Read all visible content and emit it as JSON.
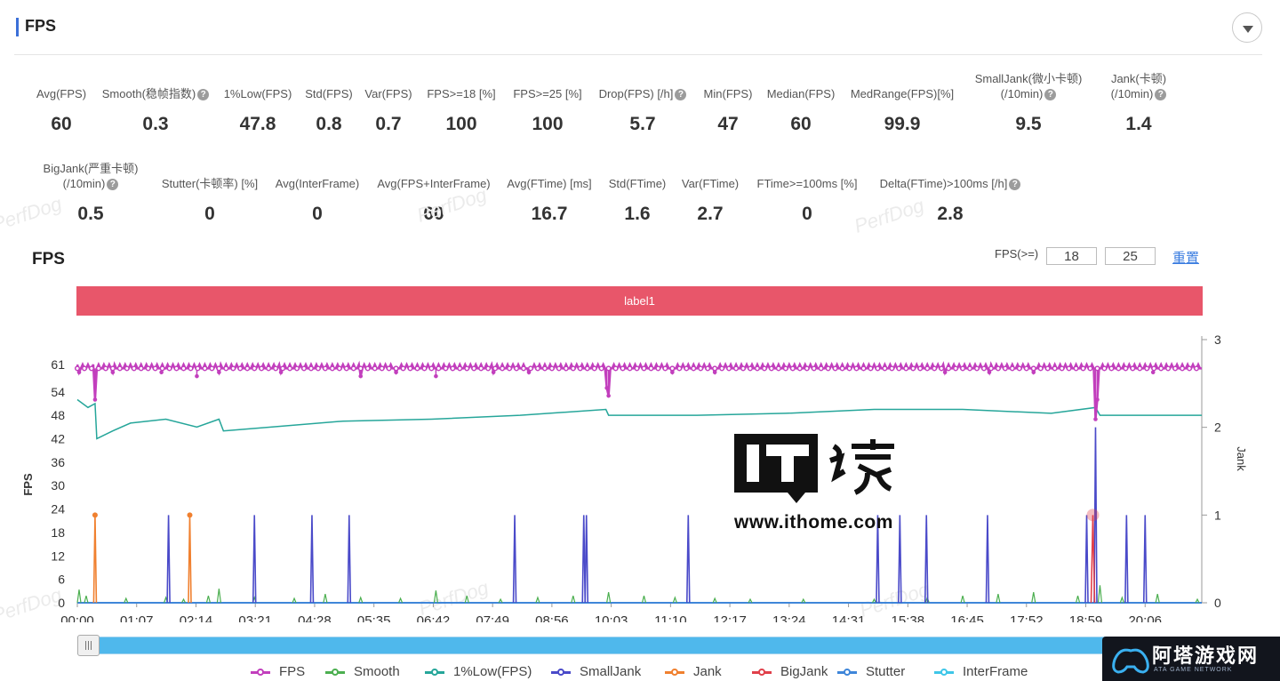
{
  "section": {
    "title": "FPS"
  },
  "metrics_row1": [
    {
      "label": "Avg(FPS)",
      "value": "60"
    },
    {
      "label": "Smooth(稳帧指数)",
      "value": "0.3",
      "help": true
    },
    {
      "label": "1%Low(FPS)",
      "value": "47.8"
    },
    {
      "label": "Std(FPS)",
      "value": "0.8"
    },
    {
      "label": "Var(FPS)",
      "value": "0.7"
    },
    {
      "label": "FPS>=18 [%]",
      "value": "100"
    },
    {
      "label": "FPS>=25 [%]",
      "value": "100"
    },
    {
      "label": "Drop(FPS) [/h]",
      "value": "5.7",
      "help": true
    },
    {
      "label": "Min(FPS)",
      "value": "47"
    },
    {
      "label": "Median(FPS)",
      "value": "60"
    },
    {
      "label": "MedRange(FPS)[%]",
      "value": "99.9"
    },
    {
      "label": "SmallJank(微小卡顿)",
      "label2": "(/10min)",
      "value": "9.5",
      "help": true
    },
    {
      "label": "Jank(卡顿)",
      "label2": "(/10min)",
      "value": "1.4",
      "help": true
    }
  ],
  "metrics_row2": [
    {
      "label": "BigJank(严重卡顿)",
      "label2": "(/10min)",
      "value": "0.5",
      "help": true
    },
    {
      "label": "Stutter(卡顿率) [%]",
      "value": "0"
    },
    {
      "label": "Avg(InterFrame)",
      "value": "0"
    },
    {
      "label": "Avg(FPS+InterFrame)",
      "value": "60"
    },
    {
      "label": "Avg(FTime) [ms]",
      "value": "16.7"
    },
    {
      "label": "Std(FTime)",
      "value": "1.6"
    },
    {
      "label": "Var(FTime)",
      "value": "2.7"
    },
    {
      "label": "FTime>=100ms [%]",
      "value": "0"
    },
    {
      "label": "Delta(FTime)>100ms [/h]",
      "value": "2.8",
      "help": true
    }
  ],
  "watermark": "PerfDog",
  "chart_header": {
    "title": "FPS",
    "filter_label": "FPS(>=)",
    "threshold_1": "18",
    "threshold_2": "25",
    "reset_label": "重置"
  },
  "label_band": "label1",
  "overlay": {
    "it_url": "www.ithome.com",
    "badge_cn": "阿塔游戏网",
    "badge_en": "ATA GAME NETWORK"
  },
  "chart_data": {
    "type": "line",
    "ylabel": "FPS",
    "ylabel_right": "Jank",
    "y_ticks": [
      0,
      6,
      12,
      18,
      24,
      30,
      36,
      42,
      48,
      54,
      61
    ],
    "y_range": [
      0,
      61
    ],
    "y_right_ticks": [
      0,
      1,
      2,
      3
    ],
    "y_right_range": [
      0,
      3
    ],
    "x_ticks": [
      "00:00",
      "01:07",
      "02:14",
      "03:21",
      "04:28",
      "05:35",
      "06:42",
      "07:49",
      "08:56",
      "10:03",
      "11:10",
      "12:17",
      "13:24",
      "14:31",
      "15:38",
      "16:45",
      "17:52",
      "18:59",
      "20:06"
    ],
    "x_range_sec": [
      0,
      1270
    ],
    "grid": false,
    "legend_position": "bottom",
    "series": [
      {
        "name": "FPS",
        "color": "#c23fbd",
        "axis": "left",
        "baseline": 60,
        "sparkle_high": 61,
        "dips": [
          [
            2,
            59
          ],
          [
            20,
            52
          ],
          [
            40,
            59
          ],
          [
            95,
            59
          ],
          [
            135,
            58
          ],
          [
            160,
            59
          ],
          [
            230,
            59
          ],
          [
            320,
            58
          ],
          [
            360,
            59
          ],
          [
            405,
            58
          ],
          [
            470,
            59
          ],
          [
            510,
            59
          ],
          [
            598,
            55
          ],
          [
            600,
            53
          ],
          [
            672,
            59
          ],
          [
            720,
            59
          ],
          [
            980,
            59
          ],
          [
            1030,
            59
          ],
          [
            1080,
            59
          ],
          [
            1150,
            47
          ],
          [
            1152,
            52
          ],
          [
            1215,
            59
          ]
        ]
      },
      {
        "name": "Smooth",
        "color": "#4caf50",
        "axis": "right",
        "values": [
          [
            2,
            0.15
          ],
          [
            10,
            0.08
          ],
          [
            55,
            0.05
          ],
          [
            100,
            0.06
          ],
          [
            120,
            0.04
          ],
          [
            148,
            0.08
          ],
          [
            160,
            0.16
          ],
          [
            200,
            0.06
          ],
          [
            245,
            0.05
          ],
          [
            280,
            0.1
          ],
          [
            320,
            0.06
          ],
          [
            365,
            0.05
          ],
          [
            405,
            0.14
          ],
          [
            440,
            0.08
          ],
          [
            478,
            0.04
          ],
          [
            520,
            0.06
          ],
          [
            560,
            0.08
          ],
          [
            600,
            0.12
          ],
          [
            640,
            0.08
          ],
          [
            675,
            0.06
          ],
          [
            720,
            0.05
          ],
          [
            760,
            0.04
          ],
          [
            820,
            0.04
          ],
          [
            900,
            0.04
          ],
          [
            960,
            0.06
          ],
          [
            1000,
            0.08
          ],
          [
            1040,
            0.1
          ],
          [
            1080,
            0.12
          ],
          [
            1130,
            0.08
          ],
          [
            1155,
            0.2
          ],
          [
            1180,
            0.06
          ],
          [
            1220,
            0.1
          ],
          [
            1265,
            0.04
          ]
        ]
      },
      {
        "name": "1%Low(FPS)",
        "color": "#26a69a",
        "axis": "left",
        "values": [
          [
            0,
            52
          ],
          [
            12,
            50
          ],
          [
            20,
            51
          ],
          [
            22,
            42
          ],
          [
            40,
            44
          ],
          [
            60,
            46
          ],
          [
            100,
            47
          ],
          [
            135,
            45
          ],
          [
            160,
            47
          ],
          [
            165,
            44
          ],
          [
            220,
            45
          ],
          [
            300,
            46.5
          ],
          [
            400,
            47
          ],
          [
            500,
            48
          ],
          [
            597,
            49.5
          ],
          [
            600,
            48
          ],
          [
            700,
            48
          ],
          [
            800,
            48.5
          ],
          [
            900,
            49.5
          ],
          [
            1000,
            49.5
          ],
          [
            1100,
            48.5
          ],
          [
            1150,
            50
          ],
          [
            1155,
            48
          ],
          [
            1270,
            48
          ]
        ]
      },
      {
        "name": "SmallJank",
        "color": "#4a4ac9",
        "axis": "right",
        "spikes": [
          [
            103,
            1
          ],
          [
            200,
            1
          ],
          [
            265,
            1
          ],
          [
            307,
            1
          ],
          [
            494,
            1
          ],
          [
            572,
            1
          ],
          [
            575,
            1
          ],
          [
            690,
            1
          ],
          [
            904,
            1
          ],
          [
            929,
            1
          ],
          [
            959,
            1
          ],
          [
            1028,
            1
          ],
          [
            1140,
            1
          ],
          [
            1150,
            2
          ],
          [
            1185,
            1
          ],
          [
            1206,
            1
          ]
        ]
      },
      {
        "name": "Jank",
        "color": "#f0802f",
        "axis": "right",
        "spikes": [
          [
            20,
            1
          ],
          [
            127,
            1
          ]
        ]
      },
      {
        "name": "BigJank",
        "color": "#e0404a",
        "axis": "right",
        "spikes": [
          [
            1147,
            1
          ]
        ]
      },
      {
        "name": "Stutter",
        "color": "#3f86d9",
        "axis": "right",
        "values": [
          [
            0,
            0
          ],
          [
            1270,
            0
          ]
        ]
      },
      {
        "name": "InterFrame",
        "color": "#3fc6e8",
        "axis": "right",
        "values": [
          [
            0,
            0
          ],
          [
            1270,
            0
          ]
        ]
      }
    ]
  }
}
